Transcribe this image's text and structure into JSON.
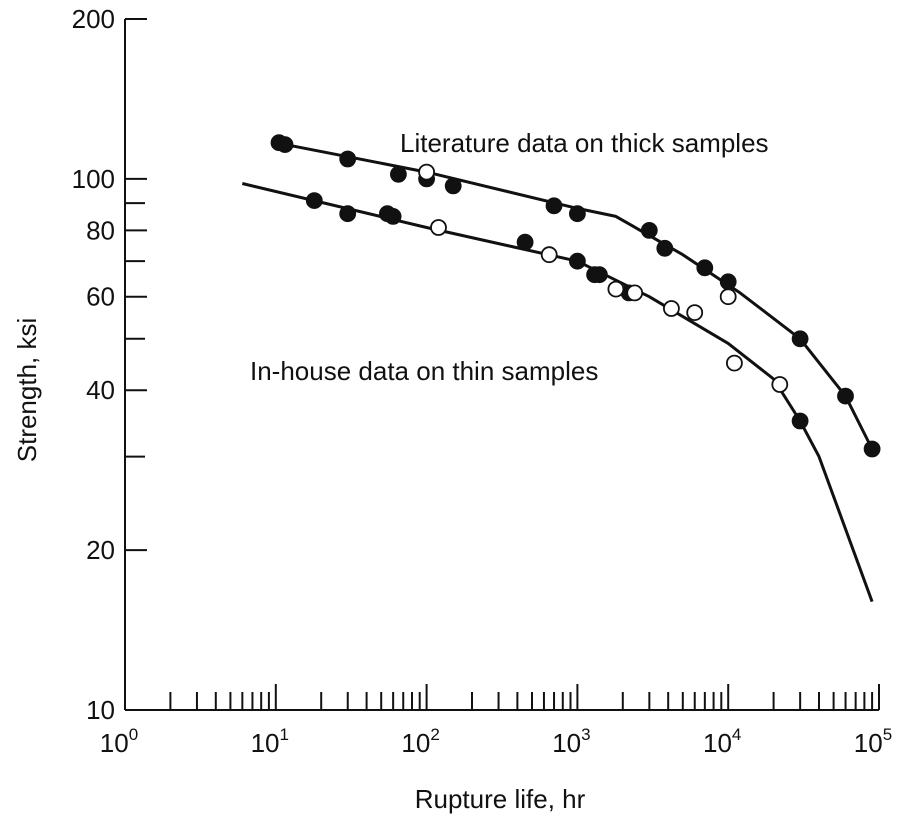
{
  "chart_data": {
    "type": "scatter",
    "xscale": "log",
    "yscale": "log",
    "xlim": [
      1,
      100000
    ],
    "ylim": [
      10,
      200
    ],
    "xlabel": "Rupture life, hr",
    "ylabel": "Strength, ksi",
    "grid": false,
    "x_ticks": [
      {
        "base": "10",
        "exp": "0",
        "value": 1
      },
      {
        "base": "10",
        "exp": "1",
        "value": 10
      },
      {
        "base": "10",
        "exp": "2",
        "value": 100
      },
      {
        "base": "10",
        "exp": "3",
        "value": 1000
      },
      {
        "base": "10",
        "exp": "4",
        "value": 10000
      },
      {
        "base": "10",
        "exp": "5",
        "value": 100000
      }
    ],
    "y_ticks": [
      {
        "label": "200",
        "value": 200
      },
      {
        "label": "100",
        "value": 100
      },
      {
        "label": "80",
        "value": 80
      },
      {
        "label": "60",
        "value": 60
      },
      {
        "label": "40",
        "value": 40
      },
      {
        "label": "20",
        "value": 20
      },
      {
        "label": "10",
        "value": 10
      }
    ],
    "annotations": [
      {
        "id": "thick",
        "text": "Literature data on thick samples"
      },
      {
        "id": "thin",
        "text": "In-house data on thin samples"
      }
    ],
    "series": [
      {
        "label_ref": "thick",
        "marker": "filled",
        "color": "#111111",
        "points": [
          [
            10.5,
            117
          ],
          [
            11.5,
            116
          ],
          [
            30,
            109
          ],
          [
            65,
            102
          ],
          [
            100,
            100
          ],
          [
            150,
            97
          ],
          [
            700,
            89
          ],
          [
            1000,
            86
          ],
          [
            3000,
            80
          ],
          [
            3800,
            74
          ],
          [
            7000,
            68
          ],
          [
            10000,
            64
          ],
          [
            30000,
            50
          ],
          [
            60000,
            39
          ],
          [
            90000,
            31
          ]
        ],
        "curve": [
          [
            10,
            117
          ],
          [
            100,
            103
          ],
          [
            1000,
            88
          ],
          [
            1800,
            85
          ],
          [
            5000,
            72
          ],
          [
            12000,
            61
          ],
          [
            30000,
            50
          ],
          [
            60000,
            39
          ],
          [
            90000,
            31
          ]
        ]
      },
      {
        "label_ref": "thick",
        "marker": "open",
        "color": "#111111",
        "points": [
          [
            100,
            103
          ]
        ]
      },
      {
        "label_ref": "thin",
        "marker": "filled",
        "color": "#111111",
        "points": [
          [
            18,
            91
          ],
          [
            30,
            86
          ],
          [
            55,
            86
          ],
          [
            60,
            85
          ],
          [
            450,
            76
          ],
          [
            1000,
            70
          ],
          [
            1300,
            66
          ],
          [
            1400,
            66
          ],
          [
            2200,
            61
          ]
        ],
        "curve": [
          [
            6,
            98
          ],
          [
            100,
            81
          ],
          [
            1000,
            70
          ],
          [
            3000,
            60
          ],
          [
            10000,
            49
          ],
          [
            20000,
            42
          ],
          [
            30000,
            35
          ],
          [
            40000,
            30
          ],
          [
            90000,
            16
          ]
        ]
      },
      {
        "label_ref": "thin",
        "marker": "filled",
        "color": "#111111",
        "points": [
          [
            30000,
            35
          ]
        ]
      },
      {
        "label_ref": "thin",
        "marker": "open",
        "color": "#111111",
        "points": [
          [
            120,
            81
          ],
          [
            650,
            72
          ],
          [
            1800,
            62
          ],
          [
            2400,
            61
          ],
          [
            4200,
            57
          ],
          [
            6000,
            56
          ],
          [
            10000,
            60
          ],
          [
            11000,
            45
          ],
          [
            22000,
            41
          ]
        ]
      }
    ]
  }
}
